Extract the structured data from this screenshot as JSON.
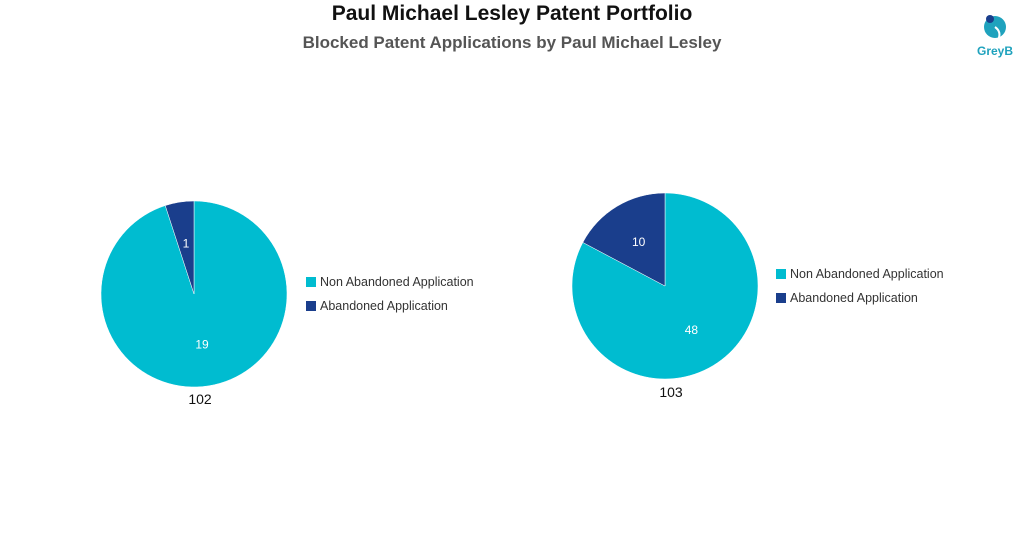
{
  "title": "Paul Michael Lesley Patent Portfolio",
  "subtitle": "Blocked Patent Applications by Paul Michael Lesley",
  "logo": {
    "text": "GreyB",
    "icon": "greyb-logo-icon"
  },
  "colors": {
    "non_abandoned": "#00bcd0",
    "abandoned": "#1a3e8c"
  },
  "chart_data": [
    {
      "type": "pie",
      "total_label": "102",
      "slices": [
        {
          "name": "Non Abandoned Application",
          "value": 19,
          "label": "19",
          "color": "#00bcd0"
        },
        {
          "name": "Abandoned Application",
          "value": 1,
          "label": "1",
          "color": "#1a3e8c"
        }
      ],
      "legend": [
        "Non Abandoned Application",
        "Abandoned Application"
      ],
      "legend_placement": "right"
    },
    {
      "type": "pie",
      "total_label": "103",
      "slices": [
        {
          "name": "Non Abandoned Application",
          "value": 48,
          "label": "48",
          "color": "#00bcd0"
        },
        {
          "name": "Abandoned Application",
          "value": 10,
          "label": "10",
          "color": "#1a3e8c"
        }
      ],
      "legend": [
        "Non Abandoned Application",
        "Abandoned Application"
      ],
      "legend_placement": "right"
    }
  ]
}
